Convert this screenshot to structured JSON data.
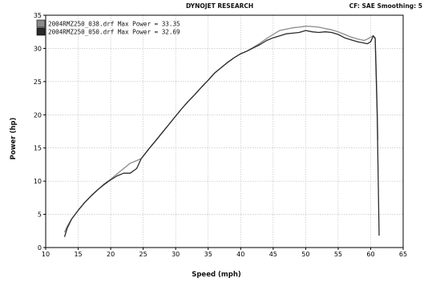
{
  "header": {
    "title": "DYNOJET RESEARCH",
    "right": "CF: SAE  Smoothing: 5"
  },
  "colors": {
    "series1": "#8a8a8a",
    "series2": "#2a2a2a",
    "grid": "#b8b8b8",
    "frame": "#000000"
  },
  "chart_data": {
    "type": "line",
    "xlabel": "Speed (mph)",
    "ylabel": "Power (hp)",
    "xlim": [
      10,
      65
    ],
    "ylim": [
      0,
      35
    ],
    "xticks": [
      10,
      15,
      20,
      25,
      30,
      35,
      40,
      45,
      50,
      55,
      60,
      65
    ],
    "yticks": [
      0,
      5,
      10,
      15,
      20,
      25,
      30,
      35
    ],
    "grid": true,
    "legend_position": "top-left",
    "series": [
      {
        "name": "2004RMZ250_038.drf Max Power = 33.35",
        "x": [
          12.9,
          13.3,
          14,
          15,
          16,
          17,
          18,
          19,
          20,
          21,
          22,
          23,
          24,
          24.7,
          26,
          27,
          28,
          29,
          30,
          31,
          32,
          33,
          34,
          35,
          36,
          37,
          38,
          39,
          40,
          41,
          42,
          43,
          44,
          45,
          46,
          47,
          48,
          49,
          50,
          51,
          52,
          53,
          54,
          55,
          56,
          57,
          58,
          59,
          59.5,
          60,
          60.4,
          60.7,
          60.9,
          61.1
        ],
        "y": [
          2.3,
          3.2,
          4.3,
          5.6,
          6.8,
          7.8,
          8.7,
          9.6,
          10.3,
          11.1,
          11.9,
          12.7,
          13.1,
          13.4,
          15.0,
          16.2,
          17.4,
          18.6,
          19.8,
          21.0,
          22.1,
          23.1,
          24.2,
          25.2,
          26.3,
          27.1,
          27.9,
          28.6,
          29.2,
          29.6,
          30.2,
          30.8,
          31.5,
          32.1,
          32.7,
          32.9,
          33.1,
          33.2,
          33.35,
          33.3,
          33.2,
          33.0,
          32.8,
          32.5,
          32.1,
          31.7,
          31.4,
          31.2,
          31.4,
          31.7,
          31.9,
          31.6,
          25.0,
          16.2
        ]
      },
      {
        "name": "2004RMZ250_050.drf Max Power = 32.69",
        "x": [
          12.9,
          13.3,
          14,
          15,
          16,
          17,
          18,
          19,
          20,
          21,
          22,
          23,
          24,
          24.7,
          26,
          27,
          28,
          29,
          30,
          31,
          32,
          33,
          34,
          35,
          36,
          37,
          38,
          39,
          40,
          41,
          42,
          43,
          44,
          45,
          46,
          47,
          48,
          49,
          50,
          51,
          52,
          53,
          54,
          55,
          56,
          57,
          58,
          59,
          59.5,
          60,
          60.4,
          60.7,
          61,
          61.3
        ],
        "y": [
          1.6,
          2.9,
          4.3,
          5.6,
          6.8,
          7.8,
          8.7,
          9.5,
          10.2,
          10.8,
          11.2,
          11.2,
          11.9,
          13.4,
          15.0,
          16.2,
          17.4,
          18.6,
          19.8,
          21.0,
          22.1,
          23.1,
          24.2,
          25.2,
          26.3,
          27.1,
          27.9,
          28.6,
          29.2,
          29.6,
          30.1,
          30.6,
          31.2,
          31.6,
          31.9,
          32.2,
          32.3,
          32.4,
          32.69,
          32.5,
          32.4,
          32.5,
          32.4,
          32.1,
          31.6,
          31.3,
          31.0,
          30.8,
          30.7,
          31.0,
          31.9,
          31.5,
          20.0,
          1.8
        ]
      }
    ]
  }
}
